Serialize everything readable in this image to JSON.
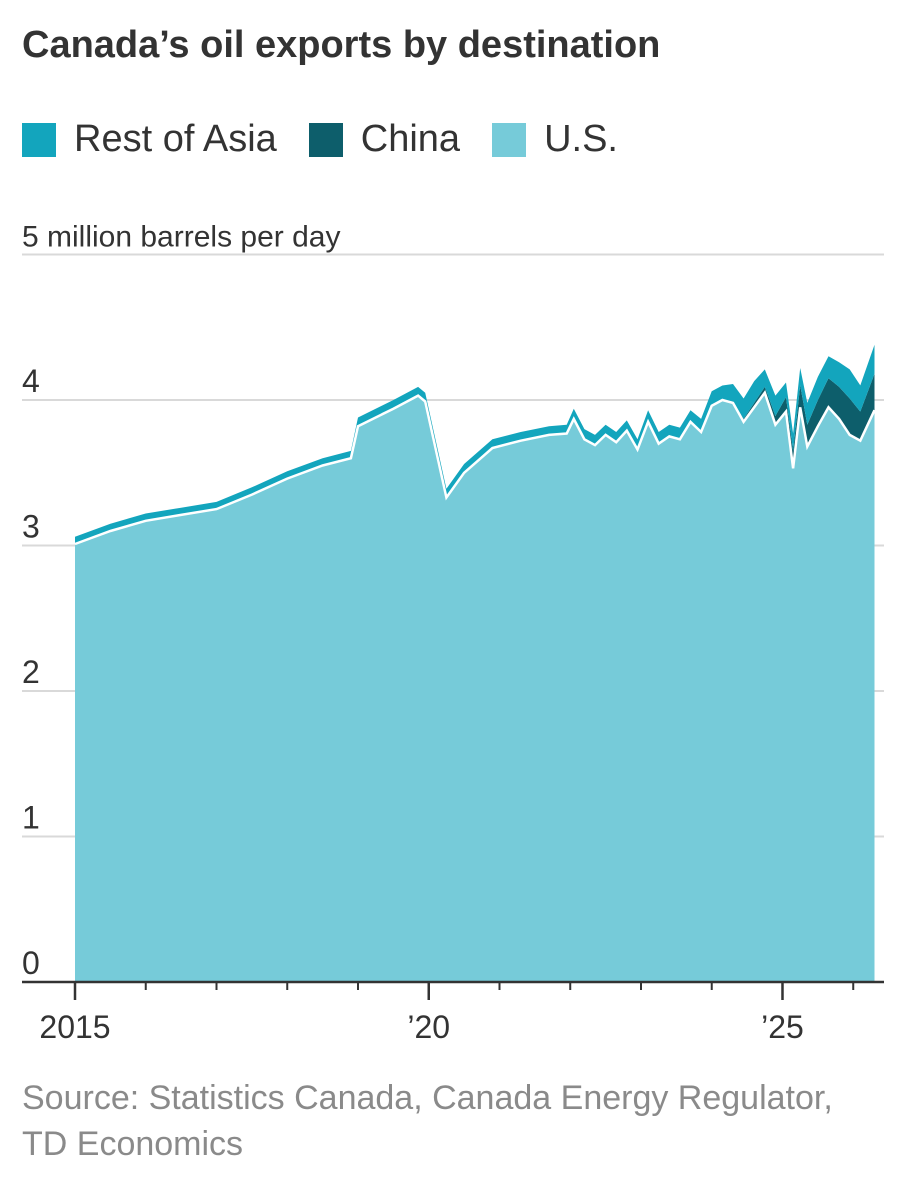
{
  "chart_data": {
    "type": "area",
    "stacked": true,
    "title": "Canada’s oil exports by destination",
    "unit_label": "5 million barrels per day",
    "ylim": [
      0,
      5
    ],
    "y_ticks": [
      {
        "value": 0,
        "label": "0"
      },
      {
        "value": 1,
        "label": "1"
      },
      {
        "value": 2,
        "label": "2"
      },
      {
        "value": 3,
        "label": "3"
      },
      {
        "value": 4,
        "label": "4"
      },
      {
        "value": 5,
        "label": ""
      }
    ],
    "xlim": [
      2015.0,
      2026.35
    ],
    "x_tick_labels": [
      {
        "value": 2015,
        "label": "2015"
      },
      {
        "value": 2020,
        "label": "’20"
      },
      {
        "value": 2025,
        "label": "’25"
      }
    ],
    "x_minor_ticks": [
      2016,
      2017,
      2018,
      2019,
      2021,
      2022,
      2023,
      2024,
      2026
    ],
    "legend": [
      "Rest of Asia",
      "China",
      "U.S."
    ],
    "x": [
      2015.0,
      2015.5,
      2016.0,
      2016.5,
      2017.0,
      2017.5,
      2018.0,
      2018.5,
      2018.9,
      2019.0,
      2019.5,
      2019.85,
      2019.95,
      2020.25,
      2020.5,
      2020.9,
      2021.3,
      2021.7,
      2021.95,
      2022.05,
      2022.2,
      2022.35,
      2022.5,
      2022.65,
      2022.8,
      2022.95,
      2023.1,
      2023.25,
      2023.4,
      2023.55,
      2023.7,
      2023.85,
      2024.0,
      2024.15,
      2024.3,
      2024.45,
      2024.6,
      2024.75,
      2024.9,
      2025.05,
      2025.15,
      2025.25,
      2025.35,
      2025.5,
      2025.65,
      2025.8,
      2025.95,
      2026.1,
      2026.3
    ],
    "series": [
      {
        "name": "U.S.",
        "color": "#76cbd9",
        "values": [
          3.01,
          3.1,
          3.17,
          3.21,
          3.25,
          3.35,
          3.46,
          3.55,
          3.6,
          3.82,
          3.94,
          4.03,
          3.99,
          3.33,
          3.5,
          3.67,
          3.72,
          3.76,
          3.77,
          3.87,
          3.73,
          3.69,
          3.76,
          3.71,
          3.79,
          3.66,
          3.85,
          3.7,
          3.75,
          3.73,
          3.85,
          3.78,
          3.96,
          4.0,
          3.98,
          3.85,
          3.95,
          4.05,
          3.83,
          3.92,
          3.53,
          3.95,
          3.68,
          3.82,
          3.95,
          3.87,
          3.76,
          3.72,
          3.93
        ]
      },
      {
        "name": "China",
        "color": "#0d5e6b",
        "values": [
          0,
          0,
          0,
          0,
          0,
          0,
          0,
          0,
          0,
          0,
          0,
          0,
          0,
          0,
          0,
          0,
          0,
          0,
          0,
          0,
          0,
          0,
          0,
          0,
          0,
          0,
          0,
          0,
          0,
          0,
          0,
          0,
          0,
          0,
          0.01,
          0.02,
          0.03,
          0.04,
          0.06,
          0.1,
          0.12,
          0.15,
          0.15,
          0.18,
          0.2,
          0.22,
          0.25,
          0.2,
          0.25
        ]
      },
      {
        "name": "Rest of Asia",
        "color": "#13a5bd",
        "values": [
          0.05,
          0.05,
          0.05,
          0.05,
          0.05,
          0.05,
          0.05,
          0.05,
          0.05,
          0.06,
          0.06,
          0.06,
          0.06,
          0.06,
          0.06,
          0.06,
          0.06,
          0.06,
          0.06,
          0.07,
          0.07,
          0.07,
          0.07,
          0.07,
          0.07,
          0.07,
          0.08,
          0.08,
          0.08,
          0.08,
          0.08,
          0.09,
          0.1,
          0.1,
          0.12,
          0.14,
          0.15,
          0.12,
          0.14,
          0.1,
          0.12,
          0.12,
          0.15,
          0.16,
          0.15,
          0.17,
          0.2,
          0.18,
          0.2
        ]
      }
    ]
  },
  "source": "Source: Statistics Canada, Canada Energy Regulator, TD Economics"
}
